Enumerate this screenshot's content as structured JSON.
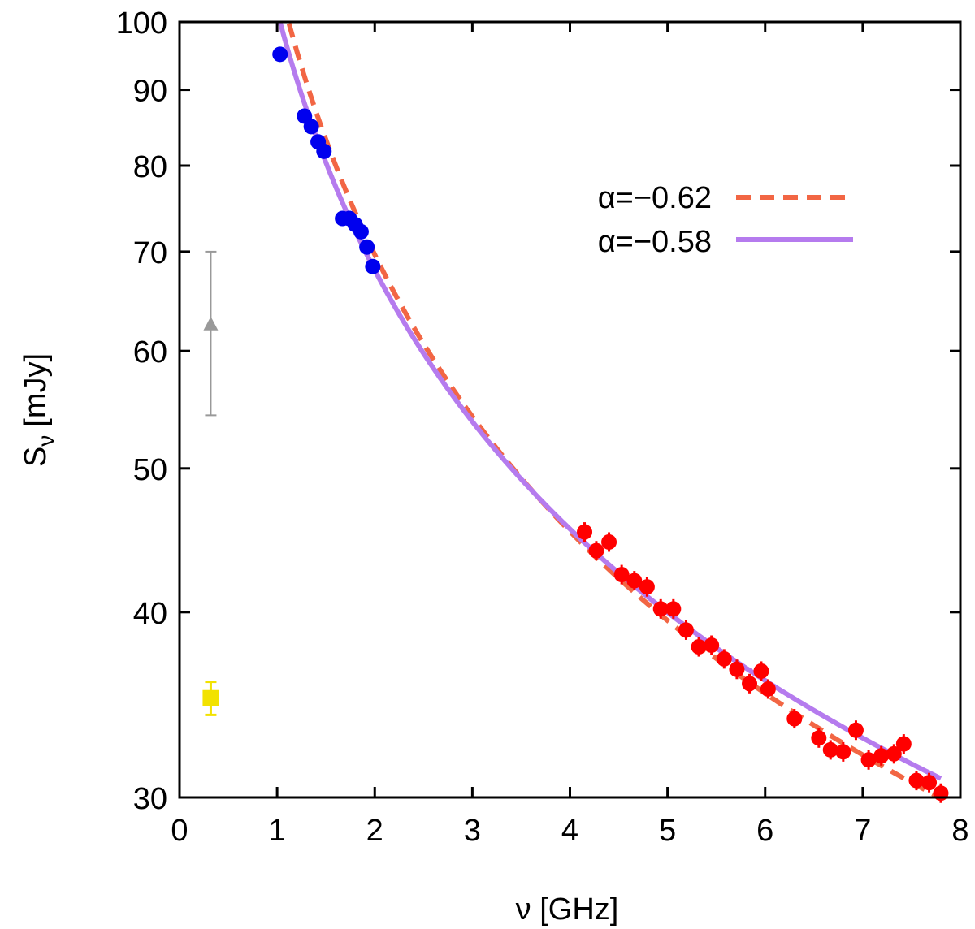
{
  "chart_data": {
    "type": "scatter",
    "xlabel": "ν [GHz]",
    "ylabel_main": "S",
    "ylabel_sub": "ν",
    "ylabel_unit": "[mJy]",
    "x_scale": "linear",
    "y_scale": "log",
    "xlim": [
      0,
      8
    ],
    "ylim": [
      30,
      100
    ],
    "x_ticks": [
      0,
      1,
      2,
      3,
      4,
      5,
      6,
      7,
      8
    ],
    "x_tick_labels": [
      "0",
      "1",
      "2",
      "3",
      "4",
      "5",
      "6",
      "7",
      "8"
    ],
    "y_ticks": [
      30,
      40,
      50,
      60,
      70,
      80,
      90,
      100
    ],
    "y_tick_labels": [
      "30",
      "40",
      "50",
      "60",
      "70",
      "80",
      "90",
      "100"
    ],
    "grid": false,
    "legend_position": "top-right",
    "curves": [
      {
        "name": "α=−0.62",
        "alpha": -0.62,
        "amplitude_at_1GHz": 107.1,
        "x_range": [
          1.0,
          7.8
        ],
        "style": "dashed",
        "color": "#f26644"
      },
      {
        "name": "α=−0.58",
        "alpha": -0.58,
        "amplitude_at_1GHz": 101.7,
        "x_range": [
          1.0,
          7.8
        ],
        "style": "solid",
        "color": "#b57bee"
      }
    ],
    "series": [
      {
        "name": "blue points",
        "color": "#0000ee",
        "marker": "circle",
        "x": [
          1.03,
          1.28,
          1.35,
          1.42,
          1.48,
          1.67,
          1.74,
          1.8,
          1.86,
          1.92,
          1.98
        ],
        "y": [
          95.1,
          86.4,
          85.0,
          83.0,
          81.8,
          73.7,
          73.7,
          73.0,
          72.2,
          70.5,
          68.4
        ]
      },
      {
        "name": "red points",
        "color": "#ff0000",
        "marker": "circle",
        "x": [
          4.15,
          4.27,
          4.4,
          4.53,
          4.66,
          4.79,
          4.93,
          5.06,
          5.19,
          5.32,
          5.45,
          5.58,
          5.71,
          5.84,
          5.96,
          6.03,
          6.3,
          6.55,
          6.67,
          6.8,
          6.93,
          7.06,
          7.19,
          7.32,
          7.42,
          7.55,
          7.68,
          7.8
        ],
        "y": [
          45.3,
          44.0,
          44.6,
          42.4,
          42.0,
          41.6,
          40.2,
          40.2,
          38.9,
          37.9,
          38.0,
          37.2,
          36.6,
          35.8,
          36.5,
          35.5,
          33.9,
          32.9,
          32.3,
          32.2,
          33.3,
          31.8,
          32.0,
          32.1,
          32.6,
          30.8,
          30.7,
          30.2
        ]
      }
    ],
    "error_points": [
      {
        "name": "grey triangle",
        "color": "#999999",
        "marker": "triangle",
        "x": 0.32,
        "y": 62.5,
        "y_low": 54.3,
        "y_high": 70.0
      },
      {
        "name": "yellow square",
        "color": "#f2e200",
        "marker": "square",
        "x": 0.32,
        "y": 35.0,
        "y_low": 34.1,
        "y_high": 35.9
      }
    ]
  }
}
